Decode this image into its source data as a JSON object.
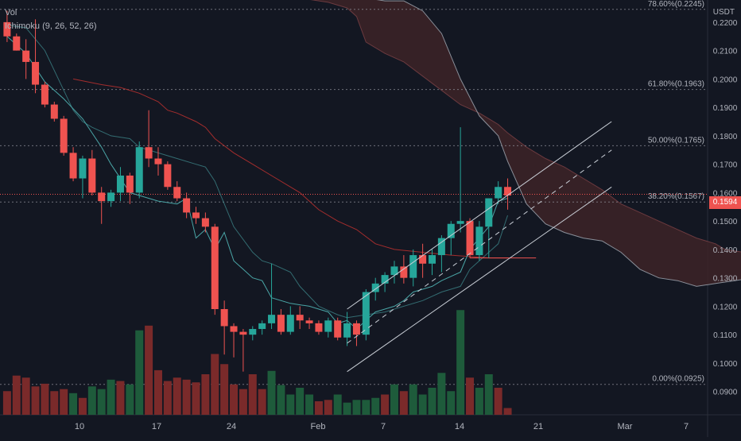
{
  "legend": {
    "volume": "Vol",
    "indicator": "Ichimoku (9, 26, 52, 26)"
  },
  "price_axis": {
    "unit": "USDT",
    "last_price": "0.1594"
  },
  "colors": {
    "background": "#131722",
    "up": "#26a69a",
    "down": "#ef5350",
    "vol_up": "#1e5b3b",
    "vol_down": "#7a2a2a",
    "fib": "#9598a1",
    "cloud": "#3d2327",
    "lagging_line": "#4aa5a6",
    "base_line": "#a32d2d",
    "channel": "#c9ced6"
  },
  "chart_data": {
    "type": "candlestick",
    "y_axis": {
      "min": 0.0818,
      "max": 0.2278,
      "ticks": [
        "0.2200",
        "0.2100",
        "0.2000",
        "0.1900",
        "0.1800",
        "0.1700",
        "0.1600",
        "0.1500",
        "0.1400",
        "0.1300",
        "0.1200",
        "0.1100",
        "0.1000",
        "0.0900"
      ]
    },
    "x_axis": {
      "tick_labels": [
        "10",
        "17",
        "24",
        "Feb",
        "7",
        "14",
        "21",
        "Mar",
        "7"
      ]
    },
    "fibonacci": [
      {
        "label": "78.60%(0.2245)",
        "value": 0.2245
      },
      {
        "label": "61.80%(0.1963)",
        "value": 0.1963
      },
      {
        "label": "50.00%(0.1765)",
        "value": 0.1765
      },
      {
        "label": "38.20%(0.1567)",
        "value": 0.1567
      },
      {
        "label": "0.00%(0.0925)",
        "value": 0.0925
      }
    ],
    "last_price": 0.1594,
    "candles": [
      [
        0.22,
        0.224,
        0.213,
        0.215
      ],
      [
        0.215,
        0.216,
        0.21,
        0.21
      ],
      [
        0.21,
        0.214,
        0.2,
        0.206
      ],
      [
        0.206,
        0.221,
        0.195,
        0.198
      ],
      [
        0.198,
        0.199,
        0.19,
        0.191
      ],
      [
        0.191,
        0.192,
        0.185,
        0.186
      ],
      [
        0.186,
        0.187,
        0.173,
        0.174
      ],
      [
        0.174,
        0.176,
        0.164,
        0.165
      ],
      [
        0.165,
        0.173,
        0.158,
        0.172
      ],
      [
        0.172,
        0.175,
        0.159,
        0.16
      ],
      [
        0.16,
        0.162,
        0.149,
        0.157
      ],
      [
        0.157,
        0.161,
        0.155,
        0.16
      ],
      [
        0.16,
        0.169,
        0.157,
        0.166
      ],
      [
        0.166,
        0.167,
        0.156,
        0.16
      ],
      [
        0.16,
        0.178,
        0.158,
        0.176
      ],
      [
        0.176,
        0.189,
        0.169,
        0.172
      ],
      [
        0.172,
        0.176,
        0.166,
        0.17
      ],
      [
        0.17,
        0.171,
        0.161,
        0.162
      ],
      [
        0.162,
        0.164,
        0.157,
        0.158
      ],
      [
        0.158,
        0.16,
        0.151,
        0.153
      ],
      [
        0.153,
        0.155,
        0.149,
        0.151
      ],
      [
        0.151,
        0.153,
        0.146,
        0.148
      ],
      [
        0.148,
        0.149,
        0.117,
        0.119
      ],
      [
        0.119,
        0.122,
        0.103,
        0.113
      ],
      [
        0.113,
        0.114,
        0.102,
        0.111
      ],
      [
        0.111,
        0.112,
        0.097,
        0.11
      ],
      [
        0.11,
        0.113,
        0.108,
        0.112
      ],
      [
        0.112,
        0.115,
        0.11,
        0.114
      ],
      [
        0.114,
        0.135,
        0.112,
        0.117
      ],
      [
        0.117,
        0.119,
        0.11,
        0.111
      ],
      [
        0.111,
        0.12,
        0.11,
        0.117
      ],
      [
        0.117,
        0.12,
        0.112,
        0.115
      ],
      [
        0.115,
        0.116,
        0.112,
        0.114
      ],
      [
        0.114,
        0.115,
        0.11,
        0.111
      ],
      [
        0.111,
        0.116,
        0.109,
        0.115
      ],
      [
        0.115,
        0.116,
        0.108,
        0.109
      ],
      [
        0.109,
        0.118,
        0.106,
        0.114
      ],
      [
        0.114,
        0.115,
        0.106,
        0.11
      ],
      [
        0.11,
        0.126,
        0.108,
        0.125
      ],
      [
        0.125,
        0.13,
        0.122,
        0.128
      ],
      [
        0.128,
        0.132,
        0.125,
        0.131
      ],
      [
        0.131,
        0.136,
        0.128,
        0.134
      ],
      [
        0.134,
        0.138,
        0.128,
        0.13
      ],
      [
        0.13,
        0.14,
        0.127,
        0.138
      ],
      [
        0.138,
        0.142,
        0.13,
        0.135
      ],
      [
        0.135,
        0.14,
        0.131,
        0.138
      ],
      [
        0.138,
        0.145,
        0.132,
        0.144
      ],
      [
        0.144,
        0.15,
        0.138,
        0.149
      ],
      [
        0.149,
        0.183,
        0.146,
        0.15
      ],
      [
        0.15,
        0.151,
        0.137,
        0.138
      ],
      [
        0.138,
        0.15,
        0.136,
        0.148
      ],
      [
        0.148,
        0.158,
        0.137,
        0.158
      ],
      [
        0.158,
        0.164,
        0.156,
        0.162
      ],
      [
        0.162,
        0.165,
        0.154,
        0.159
      ]
    ],
    "volume": [
      [
        35,
        "down"
      ],
      [
        58,
        "down"
      ],
      [
        55,
        "down"
      ],
      [
        42,
        "down"
      ],
      [
        46,
        "down"
      ],
      [
        35,
        "down"
      ],
      [
        38,
        "down"
      ],
      [
        32,
        "up"
      ],
      [
        25,
        "down"
      ],
      [
        42,
        "up"
      ],
      [
        38,
        "up"
      ],
      [
        52,
        "up"
      ],
      [
        50,
        "down"
      ],
      [
        45,
        "up"
      ],
      [
        125,
        "up"
      ],
      [
        132,
        "down"
      ],
      [
        66,
        "down"
      ],
      [
        50,
        "down"
      ],
      [
        55,
        "down"
      ],
      [
        52,
        "down"
      ],
      [
        48,
        "down"
      ],
      [
        60,
        "down"
      ],
      [
        90,
        "down"
      ],
      [
        75,
        "down"
      ],
      [
        45,
        "down"
      ],
      [
        38,
        "down"
      ],
      [
        60,
        "down"
      ],
      [
        38,
        "down"
      ],
      [
        65,
        "up"
      ],
      [
        44,
        "up"
      ],
      [
        30,
        "up"
      ],
      [
        40,
        "up"
      ],
      [
        30,
        "up"
      ],
      [
        20,
        "down"
      ],
      [
        22,
        "down"
      ],
      [
        30,
        "up"
      ],
      [
        18,
        "up"
      ],
      [
        22,
        "up"
      ],
      [
        22,
        "up"
      ],
      [
        25,
        "up"
      ],
      [
        30,
        "down"
      ],
      [
        45,
        "up"
      ],
      [
        35,
        "down"
      ],
      [
        45,
        "up"
      ],
      [
        30,
        "up"
      ],
      [
        40,
        "up"
      ],
      [
        62,
        "up"
      ],
      [
        35,
        "up"
      ],
      [
        155,
        "up"
      ],
      [
        55,
        "down"
      ],
      [
        40,
        "up"
      ],
      [
        60,
        "up"
      ],
      [
        40,
        "down"
      ],
      [
        10,
        "down"
      ]
    ],
    "tenkan_sen": [
      [
        0,
        0.219
      ],
      [
        2,
        0.218
      ],
      [
        4,
        0.21
      ],
      [
        6,
        0.196
      ],
      [
        7,
        0.189
      ],
      [
        8,
        0.185
      ],
      [
        9,
        0.183
      ],
      [
        11,
        0.18
      ],
      [
        13,
        0.179
      ],
      [
        14,
        0.176
      ],
      [
        16,
        0.174
      ],
      [
        18,
        0.172
      ],
      [
        20,
        0.17
      ],
      [
        21,
        0.169
      ],
      [
        22,
        0.164
      ],
      [
        24,
        0.148
      ],
      [
        26,
        0.139
      ],
      [
        27,
        0.136
      ],
      [
        28,
        0.135
      ],
      [
        30,
        0.132
      ],
      [
        31,
        0.127
      ],
      [
        33,
        0.12
      ],
      [
        35,
        0.117
      ],
      [
        36,
        0.116
      ],
      [
        38,
        0.117
      ],
      [
        40,
        0.118
      ],
      [
        42,
        0.12
      ],
      [
        44,
        0.122
      ],
      [
        46,
        0.125
      ],
      [
        48,
        0.127
      ],
      [
        49,
        0.133
      ],
      [
        51,
        0.139
      ],
      [
        52,
        0.142
      ],
      [
        53,
        0.152
      ]
    ],
    "kijun_sen": [
      [
        7,
        0.2
      ],
      [
        10,
        0.198
      ],
      [
        12,
        0.197
      ],
      [
        14,
        0.195
      ],
      [
        16,
        0.192
      ],
      [
        17,
        0.189
      ],
      [
        18,
        0.188
      ],
      [
        20,
        0.185
      ],
      [
        21,
        0.183
      ],
      [
        22,
        0.179
      ],
      [
        24,
        0.174
      ],
      [
        26,
        0.17
      ],
      [
        28,
        0.166
      ],
      [
        31,
        0.16
      ],
      [
        33,
        0.154
      ],
      [
        35,
        0.15
      ],
      [
        37,
        0.147
      ],
      [
        39,
        0.142
      ],
      [
        41,
        0.14
      ],
      [
        44,
        0.139
      ],
      [
        47,
        0.138
      ],
      [
        51,
        0.137
      ],
      [
        53,
        0.137
      ]
    ],
    "cloud": {
      "upper": [
        [
          25,
          0.23
        ],
        [
          29,
          0.23
        ],
        [
          30,
          0.229
        ],
        [
          32,
          0.228
        ],
        [
          34,
          0.227
        ],
        [
          36,
          0.225
        ],
        [
          37,
          0.222
        ],
        [
          38,
          0.213
        ],
        [
          40,
          0.209
        ],
        [
          42,
          0.206
        ],
        [
          44,
          0.201
        ],
        [
          46,
          0.196
        ],
        [
          48,
          0.191
        ],
        [
          50,
          0.188
        ],
        [
          51,
          0.186
        ],
        [
          52,
          0.184
        ],
        [
          53,
          0.181
        ],
        [
          55,
          0.176
        ],
        [
          57,
          0.172
        ],
        [
          59,
          0.169
        ],
        [
          61,
          0.165
        ],
        [
          63,
          0.161
        ],
        [
          65,
          0.156
        ],
        [
          67,
          0.153
        ],
        [
          69,
          0.15
        ],
        [
          71,
          0.147
        ],
        [
          73,
          0.144
        ],
        [
          75,
          0.142
        ],
        [
          76,
          0.14
        ],
        [
          78,
          0.139
        ],
        [
          80,
          0.14
        ],
        [
          82,
          0.141
        ],
        [
          84,
          0.142
        ]
      ],
      "lower": [
        [
          25,
          0.23
        ],
        [
          29,
          0.23
        ],
        [
          31,
          0.2295
        ],
        [
          33,
          0.229
        ],
        [
          35,
          0.229
        ],
        [
          37,
          0.229
        ],
        [
          39,
          0.228
        ],
        [
          40,
          0.2275
        ],
        [
          42,
          0.2275
        ],
        [
          44,
          0.224
        ],
        [
          46,
          0.216
        ],
        [
          48,
          0.2
        ],
        [
          50,
          0.187
        ],
        [
          52,
          0.18
        ],
        [
          53,
          0.171
        ],
        [
          55,
          0.156
        ],
        [
          57,
          0.149
        ],
        [
          59,
          0.146
        ],
        [
          61,
          0.144
        ],
        [
          63,
          0.143
        ],
        [
          65,
          0.139
        ],
        [
          67,
          0.133
        ],
        [
          69,
          0.13
        ],
        [
          71,
          0.129
        ],
        [
          73,
          0.127
        ],
        [
          75,
          0.128
        ],
        [
          77,
          0.129
        ],
        [
          79,
          0.13
        ],
        [
          81,
          0.131
        ],
        [
          83,
          0.131
        ],
        [
          85,
          0.132
        ]
      ]
    },
    "lagging_span": [
      [
        0,
        0.215
      ],
      [
        2,
        0.209
      ],
      [
        4,
        0.199
      ],
      [
        6,
        0.193
      ],
      [
        8,
        0.186
      ],
      [
        10,
        0.176
      ],
      [
        11,
        0.17
      ],
      [
        13,
        0.16
      ],
      [
        14,
        0.159
      ],
      [
        16,
        0.157
      ],
      [
        18,
        0.156
      ],
      [
        19,
        0.158
      ],
      [
        20,
        0.144
      ],
      [
        21,
        0.147
      ],
      [
        22,
        0.14
      ],
      [
        23,
        0.146
      ],
      [
        24,
        0.136
      ],
      [
        25,
        0.133
      ],
      [
        26,
        0.13
      ],
      [
        27,
        0.129
      ],
      [
        28,
        0.123
      ],
      [
        30,
        0.121
      ],
      [
        32,
        0.12
      ],
      [
        33,
        0.119
      ],
      [
        34,
        0.118
      ],
      [
        35,
        0.114
      ],
      [
        36,
        0.115
      ],
      [
        37,
        0.112
      ],
      [
        38,
        0.115
      ],
      [
        39,
        0.118
      ],
      [
        40,
        0.119
      ],
      [
        41,
        0.12
      ],
      [
        42,
        0.122
      ],
      [
        43,
        0.125
      ],
      [
        44,
        0.126
      ],
      [
        45,
        0.127
      ],
      [
        46,
        0.129
      ],
      [
        48,
        0.132
      ],
      [
        49,
        0.14
      ],
      [
        50,
        0.144
      ],
      [
        51,
        0.148
      ],
      [
        52,
        0.157
      ],
      [
        53,
        0.158
      ]
    ],
    "channel": {
      "upper": [
        [
          36,
          0.119
        ],
        [
          64,
          0.185
        ]
      ],
      "middle": [
        [
          36,
          0.107
        ],
        [
          64,
          0.175
        ]
      ],
      "lower": [
        [
          36,
          0.097
        ],
        [
          64,
          0.162
        ]
      ]
    },
    "support_line": [
      [
        49,
        0.137
      ],
      [
        56,
        0.137
      ]
    ]
  }
}
